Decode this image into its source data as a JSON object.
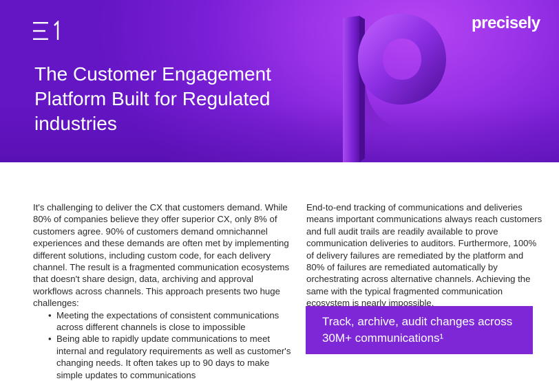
{
  "header": {
    "doc_id": "E1",
    "brand": "precisely",
    "title": "The Customer Engagement Platform Built for Regulated industries"
  },
  "left_column": {
    "paragraph": "It's challenging to deliver the CX that customers demand. While 80% of companies believe they offer superior CX, only 8% of customers agree. 90% of customers demand omnichannel experiences and these demands are often met by implementing different solutions, including custom code, for each delivery channel. The result is a fragmented communication ecosystems that doesn't share design, data, archiving and approval workflows across channels.  This approach presents two huge challenges:",
    "bullets": [
      "Meeting the expectations of consistent communications across different channels is close to impossible",
      "Being able to rapidly update communications to meet internal and regulatory requirements as well as customer's changing needs. It often takes up to 90 days to make simple updates to communications"
    ]
  },
  "right_column": {
    "paragraph": "End-to-end tracking of communications and deliveries means important communications always reach customers and full audit trails are readily available to prove communication deliveries to auditors.  Furthermore, 100% of delivery failures are remediated by the platform and 80% of failures are remediated automatically by orchestrating across alternative channels.  Achieving the same with the typical fragmented communication ecosystem is nearly impossible."
  },
  "callout": {
    "text": "Track, archive, audit changes across 30M+ communications¹"
  },
  "colors": {
    "hero_purple": "#8a2be2",
    "callout_purple": "#7d27d6",
    "text": "#2a2a2a"
  },
  "icons": [
    "doc-id-mark",
    "precisely-p-mark"
  ]
}
